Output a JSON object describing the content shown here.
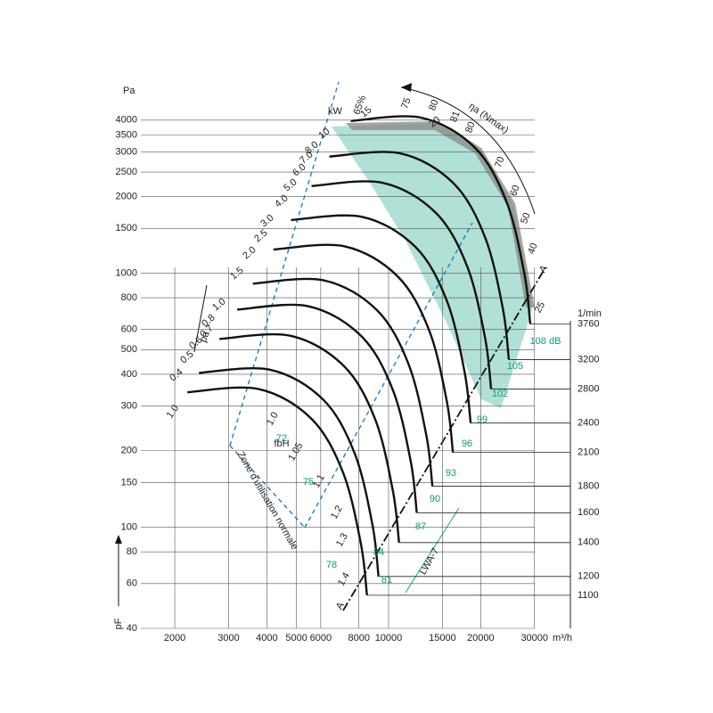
{
  "chart_data": {
    "type": "fan-curve",
    "y_unit": "Pa",
    "x_unit": "m³/h",
    "rpm_unit": "1/min",
    "log_x": true,
    "log_y": true,
    "grid": true,
    "xlim": [
      1570,
      39300
    ],
    "ylim": [
      40,
      5300
    ],
    "xticks": [
      2000,
      3000,
      4000,
      5000,
      6000,
      8000,
      10000,
      15000,
      20000,
      30000
    ],
    "yticks": [
      40,
      60,
      80,
      100,
      150,
      200,
      300,
      400,
      500,
      600,
      800,
      1000,
      1500,
      2000,
      2500,
      3000,
      3500,
      4000
    ],
    "series": [
      {
        "name": "1100",
        "color": "#111111",
        "x": [
          2200,
          3750,
          5600,
          7100,
          8120,
          8500
        ],
        "values": [
          340,
          350,
          267,
          164,
          86,
          54
        ]
      },
      {
        "name": "1200",
        "color": "#111111",
        "x": [
          2400,
          4090,
          6110,
          7750,
          8860,
          9270
        ],
        "values": [
          405,
          417,
          318,
          195,
          102,
          64
        ]
      },
      {
        "name": "1400",
        "color": "#111111",
        "x": [
          2800,
          4770,
          7130,
          9040,
          10330,
          10820
        ],
        "values": [
          551,
          567,
          432,
          266,
          139,
          87
        ]
      },
      {
        "name": "1600",
        "color": "#111111",
        "x": [
          3200,
          5455,
          8145,
          10327,
          11811,
          12364
        ],
        "values": [
          719,
          741,
          565,
          347,
          182,
          114
        ]
      },
      {
        "name": "1800",
        "color": "#111111",
        "x": [
          3600,
          6136,
          9164,
          11618,
          13287,
          13909
        ],
        "values": [
          910,
          937,
          715,
          439,
          230,
          145
        ]
      },
      {
        "name": "2100",
        "color": "#111111",
        "x": [
          4200,
          7159,
          10691,
          13555,
          15502,
          16227
        ],
        "values": [
          1239,
          1276,
          973,
          598,
          313,
          197
        ]
      },
      {
        "name": "2400",
        "color": "#111111",
        "x": [
          4800,
          8182,
          12218,
          15491,
          17716,
          18545
        ],
        "values": [
          1619,
          1666,
          1271,
          781,
          409,
          257
        ]
      },
      {
        "name": "2800",
        "color": "#111111",
        "x": [
          5600,
          9545,
          14255,
          18073,
          20669,
          21636
        ],
        "values": [
          2203,
          2268,
          1730,
          1063,
          557,
          350
        ]
      },
      {
        "name": "3200",
        "color": "#111111",
        "x": [
          6400,
          10909,
          16291,
          20655,
          23622,
          24727
        ],
        "values": [
          2877,
          2962,
          2260,
          1388,
          728,
          457
        ]
      },
      {
        "name": "3760",
        "color": "#111111",
        "x": [
          7520,
          12818,
          19142,
          24269,
          27756,
          29055
        ],
        "values": [
          3973,
          4089,
          3120,
          1916,
          1005,
          631
        ]
      }
    ],
    "power_labels": [
      "kW",
      "1.0",
      "0.4",
      "0.5",
      "0.6",
      "0.7",
      "0.8",
      "1.0",
      "1.5",
      "2.0",
      "2.5",
      "3.0",
      "4.0",
      "5.0",
      "6.0",
      "7.0",
      "8.0",
      "10",
      "15",
      "20",
      "25"
    ],
    "efficiency_labels": [
      "65%",
      "75",
      "80",
      "81",
      "80",
      "70",
      "60",
      "50",
      "40",
      "ηa (Nmax)"
    ],
    "sound_labels": [
      "72",
      "75",
      "78",
      "81",
      "84",
      "87",
      "90",
      "93",
      "96",
      "99",
      "102",
      "105",
      "108 dB"
    ],
    "annotations": [
      "Zone d'utilisation normale",
      "fbH",
      "1.0",
      "1.05",
      "1.1",
      "1.2",
      "1.3",
      "1.4",
      "A",
      "A",
      "LWA-7",
      "pa",
      "pF"
    ]
  }
}
